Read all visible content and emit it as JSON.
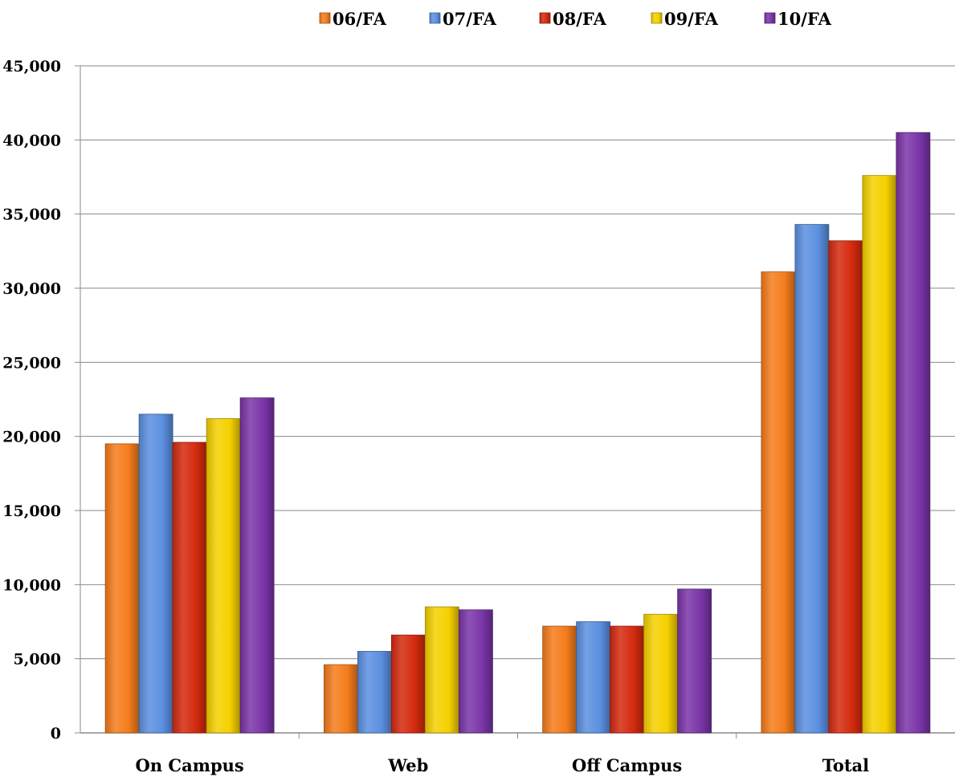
{
  "chart_data": {
    "type": "bar",
    "categories": [
      "On Campus",
      "Web",
      "Off Campus",
      "Total"
    ],
    "series": [
      {
        "name": "06/FA",
        "color": "#f47c1c",
        "values": [
          19500,
          4600,
          7200,
          31100
        ]
      },
      {
        "name": "07/FA",
        "color": "#5b8fe0",
        "values": [
          21500,
          5500,
          7500,
          34300
        ]
      },
      {
        "name": "08/FA",
        "color": "#d42a0e",
        "values": [
          19600,
          6600,
          7200,
          33200
        ]
      },
      {
        "name": "09/FA",
        "color": "#f5d000",
        "values": [
          21200,
          8500,
          8000,
          37600
        ]
      },
      {
        "name": "10/FA",
        "color": "#7a35a8",
        "values": [
          22600,
          8300,
          9700,
          40500
        ]
      }
    ],
    "ylim": [
      0,
      45000
    ],
    "yticks": [
      "0",
      "5,000",
      "10,000",
      "15,000",
      "20,000",
      "25,000",
      "30,000",
      "35,000",
      "40,000",
      "45,000"
    ],
    "ytick_values": [
      0,
      5000,
      10000,
      15000,
      20000,
      25000,
      30000,
      35000,
      40000,
      45000
    ],
    "grid": true,
    "legend_position": "top-center"
  }
}
